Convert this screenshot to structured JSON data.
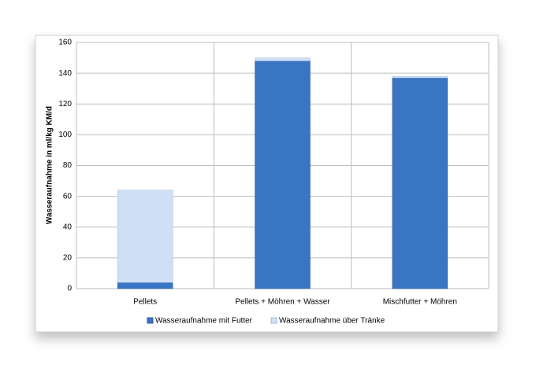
{
  "chart_data": {
    "type": "stacked_bar",
    "y_label": "Wasseraufnahme in ml/kg KM/d",
    "categories": [
      "Pellets",
      "Pellets + Möhren + Wasser",
      "Mischfutter + Möhren"
    ],
    "series": [
      {
        "name": "Wasseraufnahme mit Futter",
        "color": "#3a75c4",
        "values": [
          4,
          148,
          137
        ]
      },
      {
        "name": "Wasseraufnahme über Tränke",
        "color": "#cfe0f6",
        "values": [
          60,
          2,
          1
        ]
      }
    ],
    "ylim": [
      0,
      160
    ],
    "yticks": [
      0,
      20,
      40,
      60,
      80,
      100,
      120,
      140,
      160
    ],
    "grid": true,
    "legend": "bottom"
  }
}
